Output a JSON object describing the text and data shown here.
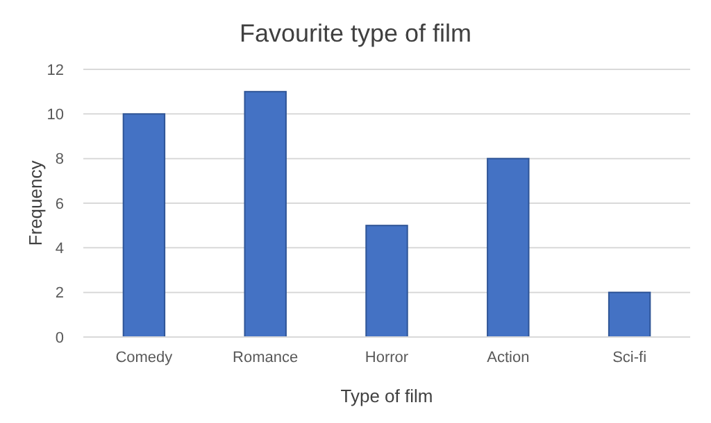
{
  "chart_data": {
    "type": "bar",
    "title": "Favourite type of film",
    "xlabel": "Type of film",
    "ylabel": "Frequency",
    "categories": [
      "Comedy",
      "Romance",
      "Horror",
      "Action",
      "Sci-fi"
    ],
    "values": [
      10,
      11,
      5,
      8,
      2
    ],
    "color": "#4472c4",
    "ylim": [
      0,
      12
    ],
    "yticks": [
      0,
      2,
      4,
      6,
      8,
      10,
      12
    ],
    "grid": "y"
  }
}
